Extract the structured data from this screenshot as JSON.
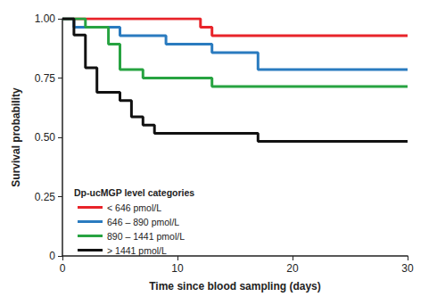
{
  "chart_data": {
    "type": "line",
    "line_style": "step",
    "x_label": "Time since blood sampling (days)",
    "y_label": "Survival probability",
    "legend_title": "Dp-ucMGP level categories",
    "legend": "lower left",
    "grid": false,
    "xlim": [
      0,
      30
    ],
    "xticks": [
      0,
      10,
      20,
      30
    ],
    "ylim": [
      0,
      1
    ],
    "yticks": [
      0,
      0.25,
      {
        "value": 0.5,
        "label": "0.50"
      },
      0.75,
      {
        "value": 1,
        "label": "1.00"
      }
    ],
    "series": [
      {
        "name": "< 646 pmol/L",
        "color": "#e8242a",
        "x": [
          0,
          12,
          13,
          30
        ],
        "values": [
          1.0,
          0.964,
          0.929,
          0.929
        ]
      },
      {
        "name": "646 – 890 pmol/L",
        "color": "#2a7bbf",
        "x": [
          0,
          1,
          5,
          9,
          13,
          17,
          30
        ],
        "values": [
          1.0,
          0.964,
          0.929,
          0.893,
          0.857,
          0.786,
          0.786
        ]
      },
      {
        "name": "890 – 1441 pmol/L",
        "color": "#27a341",
        "x": [
          0,
          2,
          4,
          5,
          7,
          13,
          30
        ],
        "values": [
          1.0,
          0.964,
          0.893,
          0.786,
          0.75,
          0.714,
          0.714
        ]
      },
      {
        "name": "> 1441 pmol/L",
        "color": "#111111",
        "x": [
          0,
          1,
          2,
          3,
          5,
          6,
          7,
          8,
          17,
          30
        ],
        "values": [
          1.0,
          0.931,
          0.793,
          0.69,
          0.655,
          0.586,
          0.552,
          0.517,
          0.483,
          0.483
        ]
      }
    ]
  }
}
